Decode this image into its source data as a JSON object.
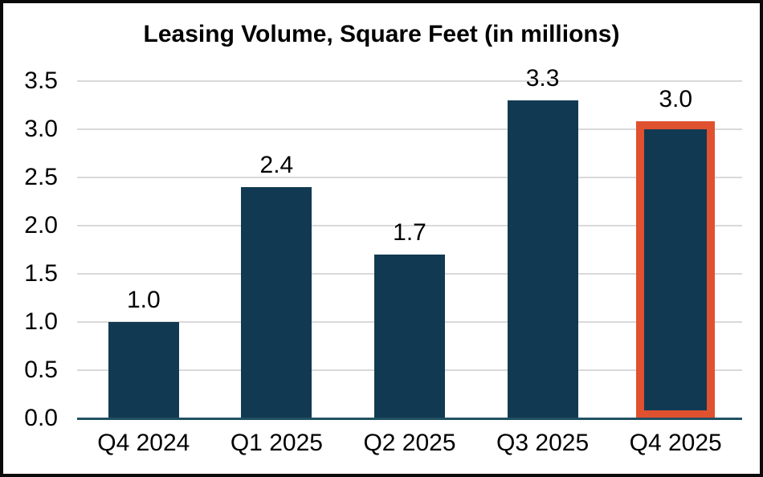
{
  "chart_data": {
    "type": "bar",
    "title": "Leasing Volume, Square Feet (in millions)",
    "categories": [
      "Q4 2024",
      "Q1 2025",
      "Q2 2025",
      "Q3 2025",
      "Q4 2025"
    ],
    "values": [
      1.0,
      2.4,
      1.7,
      3.3,
      3.0
    ],
    "data_labels": [
      "1.0",
      "2.4",
      "1.7",
      "3.3",
      "3.0"
    ],
    "highlight_index": 4,
    "highlighted_category": "Q4 2025",
    "xlabel": "",
    "ylabel": "",
    "ylim": [
      0,
      3.5
    ],
    "ytick_step": 0.5,
    "ytick_labels": [
      "0.0",
      "0.5",
      "1.0",
      "1.5",
      "2.0",
      "2.5",
      "3.0",
      "3.5"
    ],
    "grid": true,
    "legend": false,
    "colors": {
      "bar": "#113A52",
      "highlight_border": "#E0512F",
      "gridline": "#D9D9D9",
      "axis_line": "#1F5062",
      "text": "#000000",
      "frame_border": "#0A0A0A",
      "background": "#FFFFFF"
    }
  }
}
